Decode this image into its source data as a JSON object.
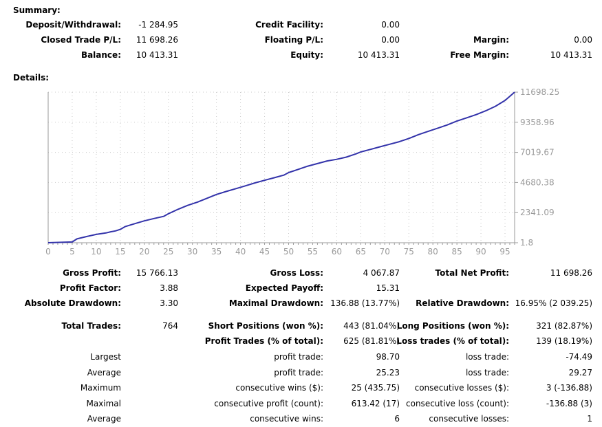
{
  "summary": {
    "title": "Summary:",
    "deposit_label": "Deposit/Withdrawal:",
    "deposit_value": "-1 284.95",
    "credit_label": "Credit Facility:",
    "credit_value": "0.00",
    "closed_label": "Closed Trade P/L:",
    "closed_value": "11 698.26",
    "floating_label": "Floating P/L:",
    "floating_value": "0.00",
    "margin_label": "Margin:",
    "margin_value": "0.00",
    "balance_label": "Balance:",
    "balance_value": "10 413.31",
    "equity_label": "Equity:",
    "equity_value": "10 413.31",
    "free_margin_label": "Free Margin:",
    "free_margin_value": "10 413.31"
  },
  "details": {
    "title": "Details:"
  },
  "stats": {
    "gross_profit_label": "Gross Profit:",
    "gross_profit_value": "15 766.13",
    "gross_loss_label": "Gross Loss:",
    "gross_loss_value": "4 067.87",
    "net_profit_label": "Total Net Profit:",
    "net_profit_value": "11 698.26",
    "profit_factor_label": "Profit Factor:",
    "profit_factor_value": "3.88",
    "expected_payoff_label": "Expected Payoff:",
    "expected_payoff_value": "15.31",
    "abs_dd_label": "Absolute Drawdown:",
    "abs_dd_value": "3.30",
    "max_dd_label": "Maximal Drawdown:",
    "max_dd_value": "136.88 (13.77%)",
    "rel_dd_label": "Relative Drawdown:",
    "rel_dd_value": "16.95% (2 039.25)",
    "total_trades_label": "Total Trades:",
    "total_trades_value": "764",
    "short_label": "Short Positions (won %):",
    "short_value": "443 (81.04%)",
    "long_label": "Long Positions (won %):",
    "long_value": "321 (82.87%)",
    "profit_trades_label": "Profit Trades (% of total):",
    "profit_trades_value": "625 (81.81%)",
    "loss_trades_label": "Loss trades (% of total):",
    "loss_trades_value": "139 (18.19%)",
    "largest_label": "Largest",
    "largest_profit_label": "profit trade:",
    "largest_profit_value": "98.70",
    "largest_loss_label": "loss trade:",
    "largest_loss_value": "-74.49",
    "average_label": "Average",
    "avg_profit_label": "profit trade:",
    "avg_profit_value": "25.23",
    "avg_loss_label": "loss trade:",
    "avg_loss_value": "29.27",
    "maximum_label": "Maximum",
    "max_cons_wins_label": "consecutive wins ($):",
    "max_cons_wins_value": "25 (435.75)",
    "max_cons_losses_label": "consecutive losses ($):",
    "max_cons_losses_value": "3 (-136.88)",
    "maximal_label": "Maximal",
    "maximal_cons_profit_label": "consecutive profit (count):",
    "maximal_cons_profit_value": "613.42 (17)",
    "maximal_cons_loss_label": "consecutive loss (count):",
    "maximal_cons_loss_value": "-136.88 (3)",
    "average2_label": "Average",
    "avg_cons_wins_label": "consecutive wins:",
    "avg_cons_wins_value": "6",
    "avg_cons_losses_label": "consecutive losses:",
    "avg_cons_losses_value": "1"
  },
  "chart_data": {
    "type": "line",
    "title": "",
    "x_ticks": [
      0,
      5,
      10,
      15,
      20,
      25,
      30,
      35,
      40,
      45,
      50,
      55,
      60,
      65,
      70,
      75,
      80,
      85,
      90,
      95
    ],
    "y_ticks": [
      "11698.25",
      "9358.96",
      "7019.67",
      "4680.38",
      "2341.09",
      "1.8"
    ],
    "ylim": [
      1.8,
      11698.25
    ],
    "xlim": [
      0,
      97
    ],
    "grid": true,
    "line_color": "#3333aa",
    "series": [
      {
        "x": [
          0,
          5,
          6,
          8,
          10,
          12,
          13,
          14,
          15,
          16,
          18,
          20,
          22,
          24,
          25,
          27,
          29,
          31,
          33,
          35,
          37,
          39,
          41,
          43,
          45,
          47,
          49,
          50,
          52,
          54,
          56,
          58,
          60,
          62,
          64,
          65,
          67,
          69,
          71,
          73,
          75,
          77,
          79,
          81,
          83,
          85,
          87,
          89,
          91,
          93,
          95,
          97
        ],
        "y": [
          1.8,
          60,
          300,
          480,
          650,
          760,
          850,
          920,
          1040,
          1250,
          1480,
          1700,
          1880,
          2050,
          2250,
          2600,
          2900,
          3150,
          3450,
          3750,
          3980,
          4200,
          4420,
          4650,
          4850,
          5050,
          5250,
          5450,
          5700,
          5950,
          6150,
          6350,
          6480,
          6650,
          6900,
          7050,
          7250,
          7450,
          7650,
          7850,
          8100,
          8400,
          8650,
          8900,
          9150,
          9450,
          9700,
          9950,
          10250,
          10600,
          11050,
          11698
        ]
      }
    ]
  }
}
